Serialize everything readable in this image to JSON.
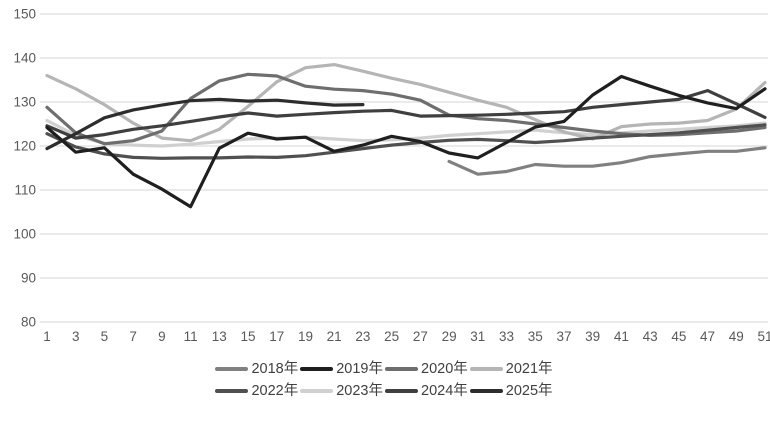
{
  "chart": {
    "title": "",
    "y_axis_labels": [
      "150",
      "140",
      "130",
      "120",
      "110",
      "100",
      "90",
      "80"
    ],
    "x_axis_labels": [
      "1",
      "3",
      "5",
      "7",
      "9",
      "11",
      "13",
      "15",
      "17",
      "19",
      "21",
      "23",
      "25",
      "27",
      "29",
      "31",
      "33",
      "35",
      "37",
      "39",
      "41",
      "43",
      "45",
      "47",
      "49",
      "51"
    ]
  },
  "chart_data": {
    "type": "line",
    "title": "",
    "xlabel": "",
    "ylabel": "",
    "x_range": [
      1,
      51
    ],
    "y_range": [
      80,
      150
    ],
    "y_tick_step": 10,
    "grid": "horizontal",
    "gridline_color": "#d6d6d6",
    "tick_label_color": "#595959",
    "legend_position": "bottom",
    "x": [
      1,
      3,
      5,
      7,
      9,
      11,
      13,
      15,
      17,
      19,
      21,
      23,
      25,
      27,
      29,
      31,
      33,
      35,
      37,
      39,
      41,
      43,
      45,
      47,
      49,
      51
    ],
    "x_ticks": [
      1,
      3,
      5,
      7,
      9,
      11,
      13,
      15,
      17,
      19,
      21,
      23,
      25,
      27,
      29,
      31,
      33,
      35,
      37,
      39,
      41,
      43,
      45,
      47,
      49,
      51
    ],
    "y_ticks": [
      80,
      90,
      100,
      110,
      120,
      130,
      140,
      150
    ],
    "legend_rows": [
      [
        "2018年",
        "2019年",
        "2020年",
        "2021年"
      ],
      [
        "2022年",
        "2023年",
        "2024年",
        "2025年"
      ]
    ],
    "series": [
      {
        "name": "2018年",
        "color": "#808080",
        "values": [
          null,
          null,
          null,
          null,
          null,
          null,
          null,
          null,
          null,
          null,
          null,
          null,
          null,
          null,
          116.5,
          113.6,
          114.2,
          115.8,
          115.4,
          115.4,
          116.2,
          117.6,
          118.2,
          118.8,
          118.8,
          119.6
        ]
      },
      {
        "name": "2019年",
        "color": "#1f1f1f",
        "values": [
          124.2,
          118.6,
          119.6,
          113.6,
          110.2,
          106.2,
          119.5,
          122.9,
          121.6,
          122.0,
          118.8,
          120.2,
          122.2,
          121.0,
          118.4,
          117.3,
          120.8,
          124.3,
          125.6,
          131.6,
          135.8,
          133.6,
          131.5,
          129.8,
          128.5,
          133.0
        ]
      },
      {
        "name": "2020年",
        "color": "#6e6e6e",
        "values": [
          128.8,
          123.0,
          120.5,
          121.2,
          123.4,
          130.8,
          134.8,
          136.3,
          135.9,
          133.6,
          132.9,
          132.6,
          131.8,
          130.4,
          127.0,
          126.2,
          125.8,
          125.0,
          124.2,
          123.4,
          122.8,
          122.4,
          122.6,
          123.0,
          123.4,
          124.2
        ]
      },
      {
        "name": "2021年",
        "color": "#b5b5b5",
        "values": [
          136.0,
          133.0,
          129.4,
          125.2,
          121.8,
          121.2,
          123.8,
          129.0,
          134.6,
          137.8,
          138.5,
          137.0,
          135.4,
          134.0,
          132.2,
          130.4,
          128.8,
          126.0,
          123.2,
          121.6,
          124.4,
          125.0,
          125.2,
          125.8,
          128.4,
          134.4
        ]
      },
      {
        "name": "2022年",
        "color": "#505050",
        "values": [
          122.8,
          119.8,
          118.2,
          117.4,
          117.2,
          117.3,
          117.3,
          117.5,
          117.4,
          117.8,
          118.6,
          119.4,
          120.2,
          120.8,
          121.3,
          121.5,
          121.2,
          120.8,
          121.2,
          121.8,
          122.2,
          122.6,
          123.0,
          123.6,
          124.2,
          124.8
        ]
      },
      {
        "name": "2023年",
        "color": "#d0d0d0",
        "values": [
          125.8,
          122.4,
          120.6,
          120.2,
          120.0,
          120.4,
          121.0,
          121.6,
          121.8,
          122.0,
          121.6,
          121.2,
          121.4,
          121.8,
          122.4,
          122.8,
          123.2,
          123.6,
          123.0,
          122.6,
          123.0,
          123.4,
          123.8,
          124.2,
          124.6,
          125.2
        ]
      },
      {
        "name": "2024年",
        "color": "#3f3f3f",
        "values": [
          124.6,
          121.8,
          122.6,
          123.8,
          124.6,
          125.6,
          126.6,
          127.5,
          126.8,
          127.2,
          127.6,
          127.9,
          128.1,
          126.8,
          126.9,
          127.0,
          127.2,
          127.5,
          127.8,
          128.8,
          129.4,
          130.0,
          130.6,
          132.6,
          129.6,
          126.5
        ]
      },
      {
        "name": "2025年",
        "color": "#2d2d2d",
        "values": [
          119.4,
          122.8,
          126.4,
          128.2,
          129.3,
          130.3,
          130.6,
          130.2,
          130.4,
          129.8,
          129.3,
          129.4,
          null,
          null,
          null,
          null,
          null,
          null,
          null,
          null,
          null,
          null,
          null,
          null,
          null,
          null
        ]
      }
    ]
  }
}
